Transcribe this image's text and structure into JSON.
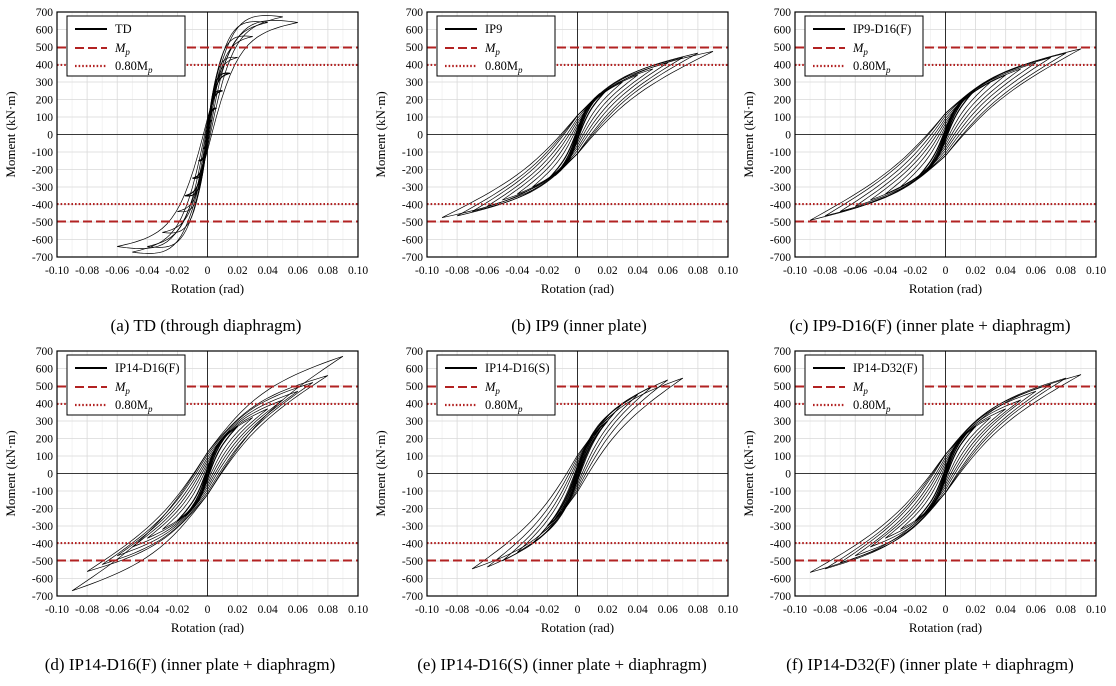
{
  "colors": {
    "mp": "#b22222",
    "curve": "#000000",
    "grid": "#d9d9d9"
  },
  "chart_data": [
    {
      "type": "line",
      "caption": "(a) TD (through diaphragm)",
      "xlabel": "Rotation (rad)",
      "ylabel": "Moment (kN·m)",
      "xlim": [
        -0.1,
        0.1
      ],
      "ylim": [
        -700,
        700
      ],
      "xticks": [
        "-0.10",
        "-0.08",
        "-0.06",
        "-0.04",
        "-0.02",
        "0",
        "0.02",
        "0.04",
        "0.06",
        "0.08",
        "0.10"
      ],
      "yticks": [
        "-700",
        "-600",
        "-500",
        "-400",
        "-300",
        "-200",
        "-100",
        "0",
        "100",
        "200",
        "300",
        "400",
        "500",
        "600",
        "700"
      ],
      "grid": true,
      "legend_position": "top-left",
      "legend": {
        "specimen": "TD",
        "mp": "M",
        "mp_sub": "p",
        "p80_prefix": "0.80M",
        "p80_sub": "p"
      },
      "mp_value": 497,
      "p80_value": 397.6,
      "loops": [
        [
          0.003,
          80
        ],
        [
          0.006,
          150
        ],
        [
          0.01,
          250
        ],
        [
          0.015,
          350
        ],
        [
          0.02,
          440
        ],
        [
          0.03,
          560
        ],
        [
          0.04,
          640
        ],
        [
          0.05,
          672
        ],
        [
          0.06,
          640
        ]
      ],
      "loop_style": {
        "amp": 220,
        "ratio": 0.0,
        "shape": 3
      }
    },
    {
      "type": "line",
      "caption": "(b) IP9 (inner plate)",
      "xlabel": "Rotation (rad)",
      "ylabel": "Moment (kN·m)",
      "xlim": [
        -0.1,
        0.1
      ],
      "ylim": [
        -700,
        700
      ],
      "xticks": [
        "-0.10",
        "-0.08",
        "-0.06",
        "-0.04",
        "-0.02",
        "0",
        "0.02",
        "0.04",
        "0.06",
        "0.08",
        "0.10"
      ],
      "yticks": [
        "-700",
        "-600",
        "-500",
        "-400",
        "-300",
        "-200",
        "-100",
        "0",
        "100",
        "200",
        "300",
        "400",
        "500",
        "600",
        "700"
      ],
      "grid": true,
      "legend_position": "top-left",
      "legend": {
        "specimen": "IP9",
        "mp": "M",
        "mp_sub": "p",
        "p80_prefix": "0.80M",
        "p80_sub": "p"
      },
      "mp_value": 497,
      "p80_value": 397.6,
      "loops": [
        [
          0.005,
          110
        ],
        [
          0.01,
          190
        ],
        [
          0.015,
          235
        ],
        [
          0.02,
          260
        ],
        [
          0.03,
          300
        ],
        [
          0.04,
          340
        ],
        [
          0.05,
          375
        ],
        [
          0.06,
          410
        ],
        [
          0.07,
          440
        ],
        [
          0.08,
          465
        ],
        [
          0.09,
          475
        ]
      ],
      "loop_style": {
        "amp": 200,
        "ratio": 0.55,
        "shape": 2.5
      }
    },
    {
      "type": "line",
      "caption": "(c) IP9-D16(F) (inner plate + diaphragm)",
      "xlabel": "Rotation (rad)",
      "ylabel": "Moment (kN·m)",
      "xlim": [
        -0.1,
        0.1
      ],
      "ylim": [
        -700,
        700
      ],
      "xticks": [
        "-0.10",
        "-0.08",
        "-0.06",
        "-0.04",
        "-0.02",
        "0",
        "0.02",
        "0.04",
        "0.06",
        "0.08",
        "0.10"
      ],
      "yticks": [
        "-700",
        "-600",
        "-500",
        "-400",
        "-300",
        "-200",
        "-100",
        "0",
        "100",
        "200",
        "300",
        "400",
        "500",
        "600",
        "700"
      ],
      "grid": true,
      "legend_position": "top-left",
      "legend": {
        "specimen": "IP9-D16(F)",
        "mp": "M",
        "mp_sub": "p",
        "p80_prefix": "0.80M",
        "p80_sub": "p"
      },
      "mp_value": 497,
      "p80_value": 397.6,
      "loops": [
        [
          0.005,
          110
        ],
        [
          0.01,
          185
        ],
        [
          0.015,
          230
        ],
        [
          0.02,
          260
        ],
        [
          0.03,
          300
        ],
        [
          0.04,
          340
        ],
        [
          0.05,
          375
        ],
        [
          0.06,
          410
        ],
        [
          0.07,
          440
        ],
        [
          0.08,
          465
        ],
        [
          0.09,
          490
        ]
      ],
      "loop_style": {
        "amp": 220,
        "ratio": 0.6,
        "shape": 2.5
      }
    },
    {
      "type": "line",
      "caption": "(d) IP14-D16(F) (inner plate + diaphragm)",
      "xlabel": "Rotation (rad)",
      "ylabel": "Moment (kN·m)",
      "xlim": [
        -0.1,
        0.1
      ],
      "ylim": [
        -700,
        700
      ],
      "xticks": [
        "-0.10",
        "-0.08",
        "-0.06",
        "-0.04",
        "-0.02",
        "0",
        "0.02",
        "0.04",
        "0.06",
        "0.08",
        "0.10"
      ],
      "yticks": [
        "-700",
        "-600",
        "-500",
        "-400",
        "-300",
        "-200",
        "-100",
        "0",
        "100",
        "200",
        "300",
        "400",
        "500",
        "600",
        "700"
      ],
      "grid": true,
      "legend_position": "top-left",
      "legend": {
        "specimen": "IP14-D16(F)",
        "mp": "M",
        "mp_sub": "p",
        "p80_prefix": "0.80M",
        "p80_sub": "p"
      },
      "mp_value": 497,
      "p80_value": 397.6,
      "loops": [
        [
          0.005,
          120
        ],
        [
          0.01,
          200
        ],
        [
          0.015,
          245
        ],
        [
          0.02,
          270
        ],
        [
          0.03,
          320
        ],
        [
          0.04,
          370
        ],
        [
          0.05,
          420
        ],
        [
          0.06,
          470
        ],
        [
          0.07,
          520
        ],
        [
          0.08,
          560
        ],
        [
          0.09,
          670
        ]
      ],
      "loop_style": {
        "amp": 220,
        "ratio": 0.55,
        "shape": 2.5
      }
    },
    {
      "type": "line",
      "caption": "(e) IP14-D16(S) (inner plate + diaphragm)",
      "xlabel": "Rotation (rad)",
      "ylabel": "Moment (kN·m)",
      "xlim": [
        -0.1,
        0.1
      ],
      "ylim": [
        -700,
        700
      ],
      "xticks": [
        "-0.10",
        "-0.08",
        "-0.06",
        "-0.04",
        "-0.02",
        "0",
        "0.02",
        "0.04",
        "0.06",
        "0.08",
        "0.10"
      ],
      "yticks": [
        "-700",
        "-600",
        "-500",
        "-400",
        "-300",
        "-200",
        "-100",
        "0",
        "100",
        "200",
        "300",
        "400",
        "500",
        "600",
        "700"
      ],
      "grid": true,
      "legend_position": "top-left",
      "legend": {
        "specimen": "IP14-D16(S)",
        "mp": "M",
        "mp_sub": "p",
        "p80_prefix": "0.80M",
        "p80_sub": "p"
      },
      "mp_value": 497,
      "p80_value": 397.6,
      "loops": [
        [
          0.005,
          130
        ],
        [
          0.01,
          210
        ],
        [
          0.015,
          260
        ],
        [
          0.02,
          300
        ],
        [
          0.025,
          350
        ],
        [
          0.03,
          400
        ],
        [
          0.04,
          450
        ],
        [
          0.05,
          500
        ],
        [
          0.06,
          535
        ],
        [
          0.07,
          545
        ]
      ],
      "loop_style": {
        "amp": 190,
        "ratio": 0.55,
        "shape": 2.5
      }
    },
    {
      "type": "line",
      "caption": "(f) IP14-D32(F) (inner plate + diaphragm)",
      "xlabel": "Rotation (rad)",
      "ylabel": "Moment (kN·m)",
      "xlim": [
        -0.1,
        0.1
      ],
      "ylim": [
        -700,
        700
      ],
      "xticks": [
        "-0.10",
        "-0.08",
        "-0.06",
        "-0.04",
        "-0.02",
        "0",
        "0.02",
        "0.04",
        "0.06",
        "0.08",
        "0.10"
      ],
      "yticks": [
        "-700",
        "-600",
        "-500",
        "-400",
        "-300",
        "-200",
        "-100",
        "0",
        "100",
        "200",
        "300",
        "400",
        "500",
        "600",
        "700"
      ],
      "grid": true,
      "legend_position": "top-left",
      "legend": {
        "specimen": "IP14-D32(F)",
        "mp": "M",
        "mp_sub": "p",
        "p80_prefix": "0.80M",
        "p80_sub": "p"
      },
      "mp_value": 497,
      "p80_value": 397.6,
      "loops": [
        [
          0.005,
          120
        ],
        [
          0.01,
          195
        ],
        [
          0.015,
          240
        ],
        [
          0.02,
          270
        ],
        [
          0.03,
          320
        ],
        [
          0.04,
          370
        ],
        [
          0.05,
          420
        ],
        [
          0.06,
          470
        ],
        [
          0.07,
          510
        ],
        [
          0.08,
          545
        ],
        [
          0.09,
          565
        ]
      ],
      "loop_style": {
        "amp": 200,
        "ratio": 0.55,
        "shape": 2.5
      }
    }
  ]
}
